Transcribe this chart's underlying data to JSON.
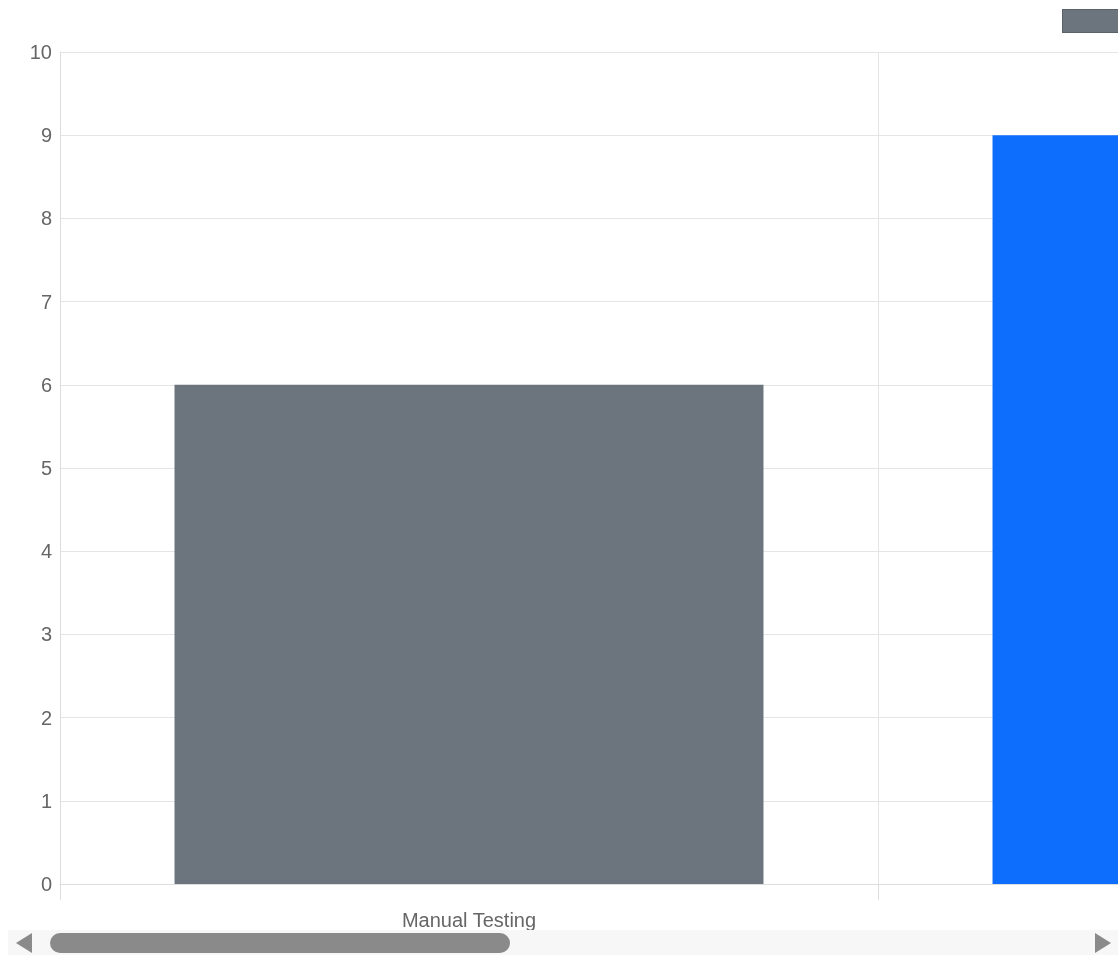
{
  "chart_data": {
    "type": "bar",
    "categories": [
      "Manual Testing",
      null
    ],
    "series": [
      {
        "color": "#6c757d",
        "colors": [
          "#6c757d",
          "#0d6efd"
        ],
        "values": [
          6,
          9
        ]
      }
    ],
    "ylim": [
      0,
      10
    ],
    "yticks": [
      0,
      1,
      2,
      3,
      4,
      5,
      6,
      7,
      8,
      9,
      10
    ],
    "grid": true
  }
}
